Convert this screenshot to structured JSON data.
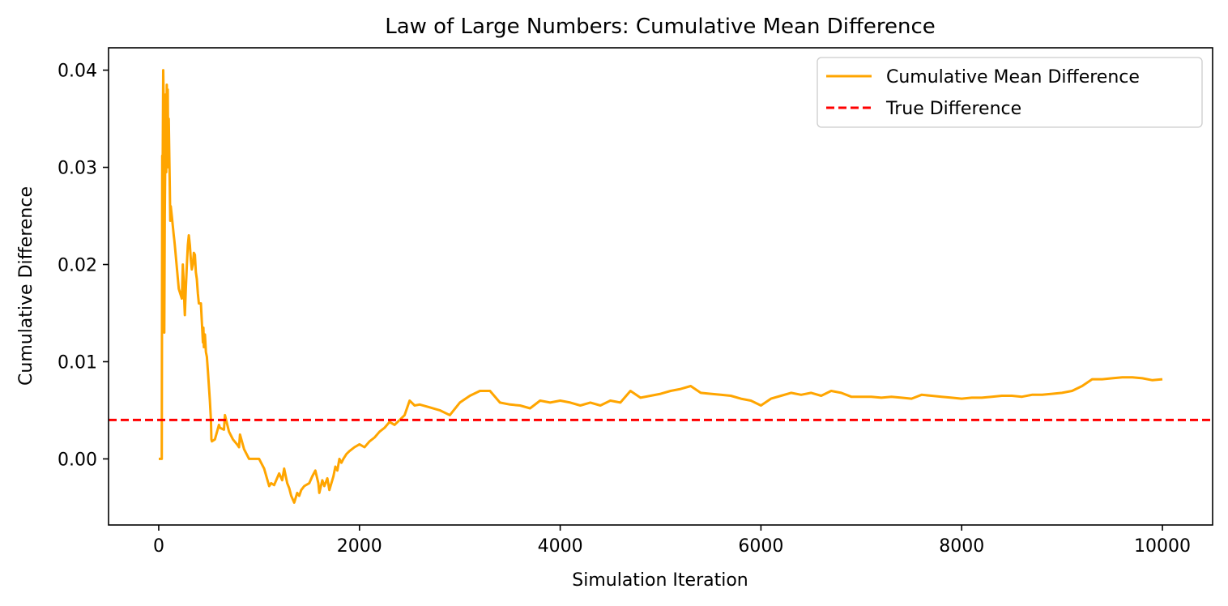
{
  "chart_data": {
    "type": "line",
    "title": "Law of Large Numbers: Cumulative Mean Difference",
    "xlabel": "Simulation Iteration",
    "ylabel": "Cumulative Difference",
    "xlim": [
      -500,
      10500
    ],
    "ylim": [
      -0.0068,
      0.0423
    ],
    "xticks": [
      0,
      2000,
      4000,
      6000,
      8000,
      10000
    ],
    "xtick_labels": [
      "0",
      "2000",
      "4000",
      "6000",
      "8000",
      "10000"
    ],
    "yticks": [
      0.0,
      0.01,
      0.02,
      0.03,
      0.04
    ],
    "ytick_labels": [
      "0.00",
      "0.01",
      "0.02",
      "0.03",
      "0.04"
    ],
    "grid": false,
    "legend_position": "top-right",
    "series": [
      {
        "name": "Cumulative Mean Difference",
        "color": "#FFA500",
        "style": "solid",
        "x": [
          0,
          30,
          35,
          40,
          45,
          50,
          55,
          60,
          65,
          70,
          75,
          80,
          85,
          90,
          95,
          100,
          110,
          115,
          120,
          130,
          135,
          140,
          150,
          155,
          160,
          200,
          230,
          240,
          250,
          255,
          260,
          270,
          280,
          290,
          300,
          310,
          320,
          330,
          340,
          350,
          360,
          370,
          380,
          390,
          400,
          420,
          440,
          445,
          450,
          460,
          470,
          480,
          490,
          500,
          510,
          520,
          525,
          530,
          560,
          600,
          610,
          650,
          660,
          700,
          740,
          780,
          800,
          810,
          850,
          900,
          1000,
          1050,
          1100,
          1120,
          1150,
          1200,
          1230,
          1250,
          1280,
          1300,
          1320,
          1350,
          1380,
          1400,
          1420,
          1450,
          1500,
          1530,
          1560,
          1590,
          1600,
          1630,
          1650,
          1680,
          1700,
          1720,
          1740,
          1760,
          1780,
          1800,
          1820,
          1840,
          1870,
          1900,
          1950,
          2000,
          2050,
          2100,
          2150,
          2200,
          2250,
          2300,
          2350,
          2400,
          2450,
          2500,
          2550,
          2600,
          2700,
          2800,
          2900,
          3000,
          3100,
          3200,
          3300,
          3400,
          3500,
          3600,
          3700,
          3800,
          3900,
          4000,
          4100,
          4200,
          4300,
          4400,
          4500,
          4600,
          4700,
          4800,
          4900,
          5000,
          5100,
          5200,
          5300,
          5400,
          5500,
          5600,
          5700,
          5800,
          5900,
          6000,
          6100,
          6200,
          6300,
          6400,
          6500,
          6600,
          6700,
          6800,
          6900,
          7000,
          7100,
          7200,
          7300,
          7400,
          7500,
          7600,
          7700,
          7800,
          7900,
          8000,
          8100,
          8200,
          8300,
          8400,
          8500,
          8600,
          8700,
          8800,
          8900,
          9000,
          9100,
          9200,
          9300,
          9400,
          9500,
          9600,
          9700,
          9800,
          9900,
          10000
        ],
        "values": [
          0.0,
          0.0,
          0.0312,
          0.031,
          0.04,
          0.036,
          0.013,
          0.025,
          0.0305,
          0.0375,
          0.0295,
          0.0385,
          0.034,
          0.038,
          0.03,
          0.035,
          0.028,
          0.0245,
          0.026,
          0.025,
          0.0245,
          0.024,
          0.023,
          0.0225,
          0.022,
          0.0175,
          0.0165,
          0.02,
          0.018,
          0.016,
          0.0148,
          0.0175,
          0.0198,
          0.022,
          0.023,
          0.022,
          0.0205,
          0.0195,
          0.02,
          0.0212,
          0.021,
          0.0192,
          0.0185,
          0.017,
          0.016,
          0.016,
          0.012,
          0.0135,
          0.0115,
          0.0128,
          0.011,
          0.0105,
          0.009,
          0.0075,
          0.006,
          0.004,
          0.002,
          0.0018,
          0.002,
          0.0035,
          0.0032,
          0.003,
          0.0045,
          0.0028,
          0.002,
          0.0015,
          0.0012,
          0.0025,
          0.001,
          0.0,
          0.0,
          -0.001,
          -0.0028,
          -0.0025,
          -0.0027,
          -0.0015,
          -0.0022,
          -0.001,
          -0.0025,
          -0.003,
          -0.0038,
          -0.0045,
          -0.0035,
          -0.0038,
          -0.0032,
          -0.0028,
          -0.0025,
          -0.0018,
          -0.0012,
          -0.0025,
          -0.0035,
          -0.0022,
          -0.0028,
          -0.002,
          -0.0032,
          -0.0025,
          -0.0018,
          -0.0008,
          -0.0012,
          0.0,
          -0.0004,
          0.0,
          0.0005,
          0.0008,
          0.0012,
          0.0015,
          0.0012,
          0.0018,
          0.0022,
          0.0028,
          0.0032,
          0.0038,
          0.0035,
          0.004,
          0.0045,
          0.006,
          0.0055,
          0.0056,
          0.0053,
          0.005,
          0.0045,
          0.0058,
          0.0065,
          0.007,
          0.007,
          0.0058,
          0.0056,
          0.0055,
          0.0052,
          0.006,
          0.0058,
          0.006,
          0.0058,
          0.0055,
          0.0058,
          0.0055,
          0.006,
          0.0058,
          0.007,
          0.0063,
          0.0065,
          0.0067,
          0.007,
          0.0072,
          0.0075,
          0.0068,
          0.0067,
          0.0066,
          0.0065,
          0.0062,
          0.006,
          0.0055,
          0.0062,
          0.0065,
          0.0068,
          0.0066,
          0.0068,
          0.0065,
          0.007,
          0.0068,
          0.0064,
          0.0064,
          0.0064,
          0.0063,
          0.0064,
          0.0063,
          0.0062,
          0.0066,
          0.0065,
          0.0064,
          0.0063,
          0.0062,
          0.0063,
          0.0063,
          0.0064,
          0.0065,
          0.0065,
          0.0064,
          0.0066,
          0.0066,
          0.0067,
          0.0068,
          0.007,
          0.0075,
          0.0082,
          0.0082,
          0.0083,
          0.0084,
          0.0084,
          0.0083,
          0.0081,
          0.0082
        ]
      },
      {
        "name": "True Difference",
        "color": "#FF0000",
        "style": "dashed",
        "x": [
          -500,
          10500
        ],
        "values": [
          0.004,
          0.004
        ]
      }
    ]
  }
}
